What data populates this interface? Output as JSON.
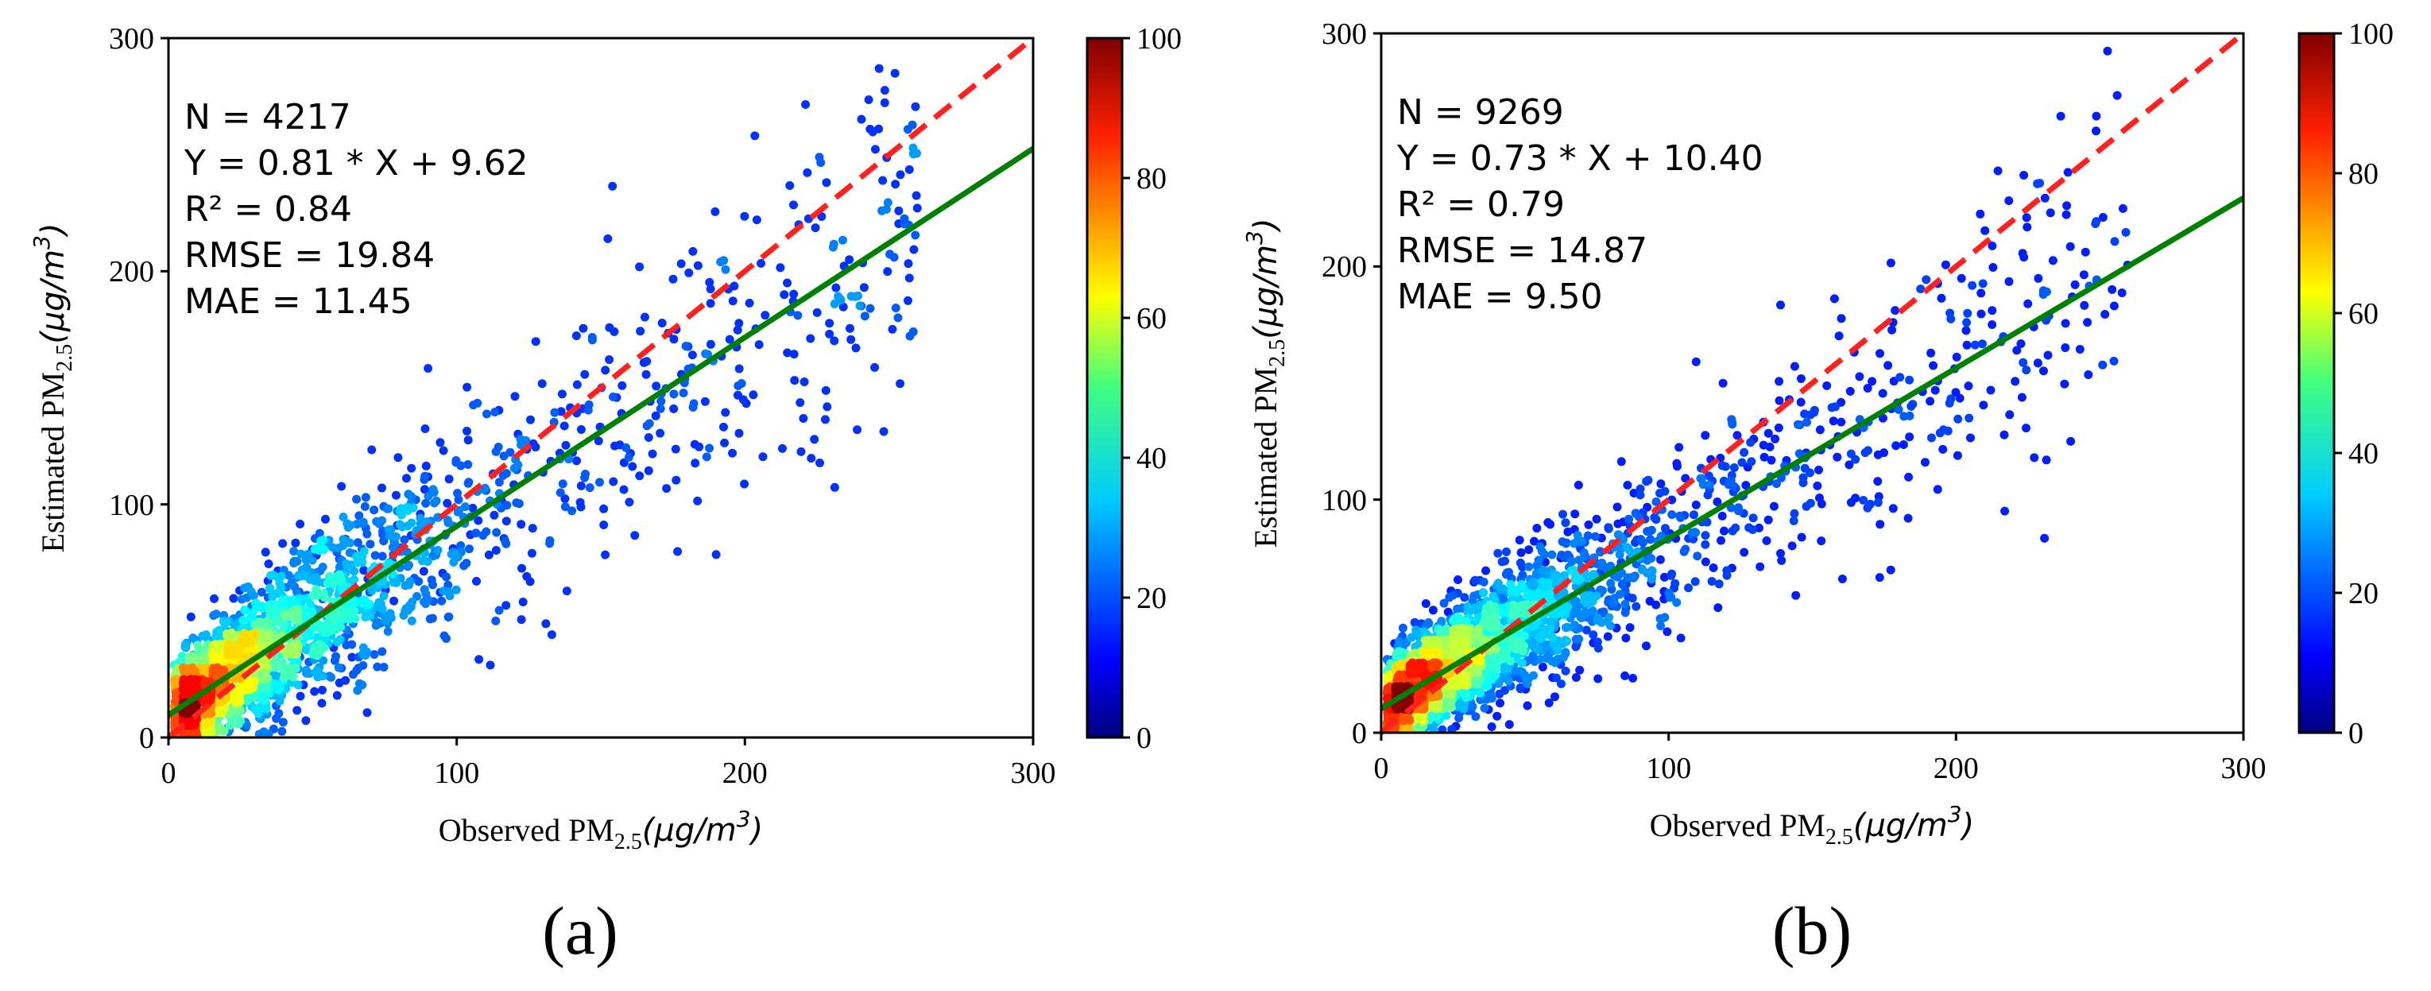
{
  "chart_data": [
    {
      "type": "scatter",
      "panel_label": "(a)",
      "xlabel": {
        "main": "Observed PM",
        "sub": "2.5",
        "unit": "(μg/m",
        "unit_sup": "3",
        "unit_close": ")"
      },
      "ylabel": {
        "main": "Estimated PM",
        "sub": "2.5",
        "unit": "(μg/m",
        "unit_sup": "3",
        "unit_close": ")"
      },
      "xlim": [
        0,
        300
      ],
      "ylim": [
        0,
        300
      ],
      "xticks": [
        0,
        100,
        200,
        300
      ],
      "yticks": [
        0,
        100,
        200,
        300
      ],
      "colorbar": {
        "range": [
          0,
          100
        ],
        "ticks": [
          0,
          20,
          40,
          60,
          80,
          100
        ],
        "colormap": "jet"
      },
      "stats": {
        "N": "N = 4217",
        "fit": "Y = 0.81 * X + 9.62",
        "R2": "R² = 0.84",
        "RMSE": "RMSE = 19.84",
        "MAE": "MAE = 11.45"
      },
      "fit_line": {
        "slope": 0.81,
        "intercept": 9.62,
        "color": "#008000"
      },
      "one_to_one": {
        "slope": 1,
        "intercept": 0,
        "color": "#ff2020"
      },
      "sample": {
        "count": 4217,
        "shown": 2600,
        "seed": 11,
        "noise": 16,
        "tail_frac": 0.18,
        "xscale": 28
      }
    },
    {
      "type": "scatter",
      "panel_label": "(b)",
      "xlabel": {
        "main": "Observed PM",
        "sub": "2.5",
        "unit": "(μg/m",
        "unit_sup": "3",
        "unit_close": ")"
      },
      "ylabel": {
        "main": "Estimated PM",
        "sub": "2.5",
        "unit": "(μg/m",
        "unit_sup": "3",
        "unit_close": ")"
      },
      "xlim": [
        0,
        300
      ],
      "ylim": [
        0,
        300
      ],
      "xticks": [
        0,
        100,
        200,
        300
      ],
      "yticks": [
        0,
        100,
        200,
        300
      ],
      "colorbar": {
        "range": [
          0,
          100
        ],
        "ticks": [
          0,
          20,
          40,
          60,
          80,
          100
        ],
        "colormap": "jet"
      },
      "stats": {
        "N": "N = 9269",
        "fit": "Y = 0.73 * X + 10.40",
        "R2": "R² = 0.79",
        "RMSE": "RMSE = 14.87",
        "MAE": "MAE = 9.50"
      },
      "fit_line": {
        "slope": 0.73,
        "intercept": 10.4,
        "color": "#008000"
      },
      "one_to_one": {
        "slope": 1,
        "intercept": 0,
        "color": "#ff2020"
      },
      "sample": {
        "count": 9269,
        "shown": 3200,
        "seed": 23,
        "noise": 14,
        "tail_frac": 0.12,
        "xscale": 26
      }
    }
  ]
}
